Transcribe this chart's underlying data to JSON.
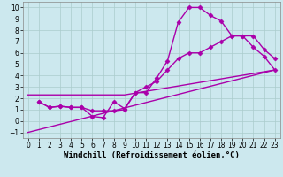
{
  "xlabel": "Windchill (Refroidissement éolien,°C)",
  "background_color": "#cce8ee",
  "grid_color": "#aacccc",
  "line_color": "#aa00aa",
  "xlim": [
    -0.5,
    23.5
  ],
  "ylim": [
    -1.5,
    10.5
  ],
  "xticks": [
    0,
    1,
    2,
    3,
    4,
    5,
    6,
    7,
    8,
    9,
    10,
    11,
    12,
    13,
    14,
    15,
    16,
    17,
    18,
    19,
    20,
    21,
    22,
    23
  ],
  "yticks": [
    -1,
    0,
    1,
    2,
    3,
    4,
    5,
    6,
    7,
    8,
    9,
    10
  ],
  "line1_x": [
    1,
    2,
    3,
    4,
    5,
    6,
    7,
    8,
    9,
    10,
    11,
    12,
    13,
    14,
    15,
    16,
    17,
    18,
    19,
    20,
    21,
    22,
    23
  ],
  "line1_y": [
    1.7,
    1.2,
    1.3,
    1.2,
    1.2,
    0.4,
    0.3,
    1.7,
    1.1,
    2.5,
    2.5,
    3.8,
    5.3,
    8.7,
    10.0,
    10.0,
    9.3,
    8.8,
    7.5,
    7.5,
    6.5,
    5.7,
    4.5
  ],
  "line2_x": [
    1,
    2,
    3,
    4,
    5,
    6,
    7,
    8,
    9,
    10,
    11,
    12,
    13,
    14,
    15,
    16,
    17,
    18,
    19,
    20,
    21,
    22,
    23
  ],
  "line2_y": [
    1.7,
    1.2,
    1.3,
    1.2,
    1.2,
    0.9,
    0.9,
    0.9,
    1.0,
    2.5,
    3.0,
    3.5,
    4.5,
    5.5,
    6.0,
    6.0,
    6.5,
    7.0,
    7.5,
    7.5,
    7.5,
    6.3,
    5.5
  ],
  "line3_x": [
    0,
    23
  ],
  "line3_y": [
    -1.0,
    4.5
  ],
  "line4_x": [
    0,
    9,
    23
  ],
  "line4_y": [
    2.3,
    2.3,
    4.5
  ],
  "marker": "D",
  "markersize": 2.5,
  "linewidth": 1.0,
  "xlabel_fontsize": 6.5,
  "tick_fontsize": 5.5
}
